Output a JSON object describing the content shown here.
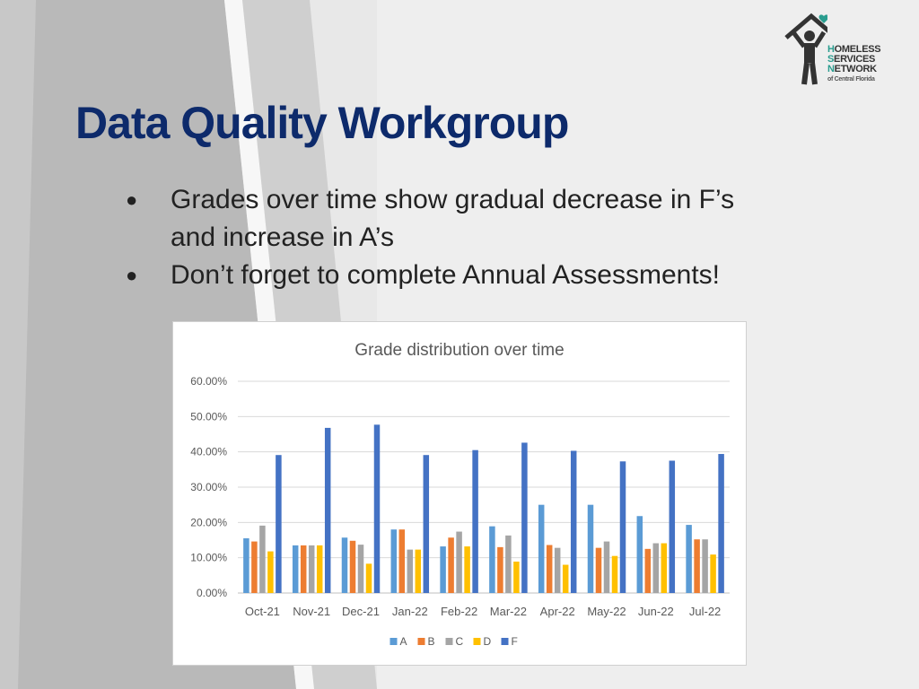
{
  "slide": {
    "title": "Data Quality Workgroup",
    "bullets": [
      "Grades over time show gradual decrease in F’s and increase in A’s",
      "Don’t forget to complete Annual Assessments!"
    ],
    "bullet_glyph": "●"
  },
  "logo": {
    "alt": "Homeless Services Network of Central Florida",
    "line1_cap": "H",
    "line1_rest": "OMELESS",
    "line2_cap": "S",
    "line2_rest": "ERVICES",
    "line3_cap": "N",
    "line3_rest": "ETWORK",
    "line4": "of Central Florida",
    "accent_color": "#2a9d8f"
  },
  "chart_data": {
    "type": "bar",
    "title": "Grade distribution over time",
    "xlabel": "",
    "ylabel": "",
    "ylim": [
      0,
      60
    ],
    "y_ticks": [
      "0.00%",
      "10.00%",
      "20.00%",
      "30.00%",
      "40.00%",
      "50.00%",
      "60.00%"
    ],
    "grid": true,
    "legend_position": "bottom",
    "categories": [
      "Oct-21",
      "Nov-21",
      "Dec-21",
      "Jan-22",
      "Feb-22",
      "Mar-22",
      "Apr-22",
      "May-22",
      "Jun-22",
      "Jul-22"
    ],
    "series": [
      {
        "name": "A",
        "color": "#5b9bd5",
        "values": [
          15.5,
          13.5,
          15.7,
          18.0,
          13.2,
          18.9,
          25.0,
          25.0,
          21.8,
          19.3
        ]
      },
      {
        "name": "B",
        "color": "#ed7d31",
        "values": [
          14.6,
          13.5,
          14.8,
          18.0,
          15.7,
          13.0,
          13.6,
          12.8,
          12.5,
          15.2
        ]
      },
      {
        "name": "C",
        "color": "#a5a5a5",
        "values": [
          19.1,
          13.5,
          13.7,
          12.3,
          17.4,
          16.3,
          12.8,
          14.6,
          14.1,
          15.2
        ]
      },
      {
        "name": "D",
        "color": "#ffc000",
        "values": [
          11.8,
          13.5,
          8.3,
          12.3,
          13.2,
          8.9,
          8.0,
          10.5,
          14.1,
          10.9
        ]
      },
      {
        "name": "F",
        "color": "#4472c4",
        "values": [
          39.1,
          46.8,
          47.7,
          39.1,
          40.5,
          42.6,
          40.3,
          37.3,
          37.5,
          39.4
        ]
      }
    ]
  }
}
